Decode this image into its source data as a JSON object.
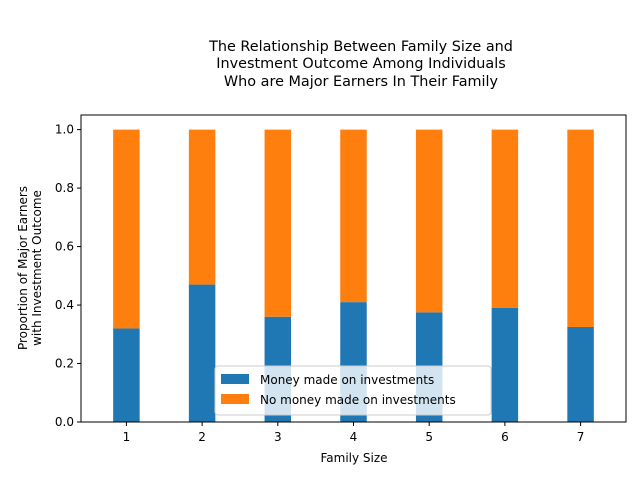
{
  "chart_data": {
    "type": "bar",
    "stacked": true,
    "title": [
      "The Relationship Between Family Size and",
      "Investment Outcome Among Individuals",
      "Who are Major Earners In Their Family"
    ],
    "xlabel": "Family Size",
    "ylabel": [
      "Proportion of Major Earners",
      "with Investment Outcome"
    ],
    "categories": [
      "1",
      "2",
      "3",
      "4",
      "5",
      "6",
      "7"
    ],
    "yticks": [
      "0.0",
      "0.2",
      "0.4",
      "0.6",
      "0.8",
      "1.0"
    ],
    "ylim": [
      0,
      1.05
    ],
    "series": [
      {
        "name": "Money made on investments",
        "color": "#1f77b4",
        "values": [
          0.32,
          0.47,
          0.36,
          0.41,
          0.375,
          0.39,
          0.325
        ]
      },
      {
        "name": "No money made on investments",
        "color": "#ff7f0e",
        "values": [
          0.68,
          0.53,
          0.64,
          0.59,
          0.625,
          0.61,
          0.675
        ]
      }
    ],
    "legend_position": "lower-center"
  }
}
